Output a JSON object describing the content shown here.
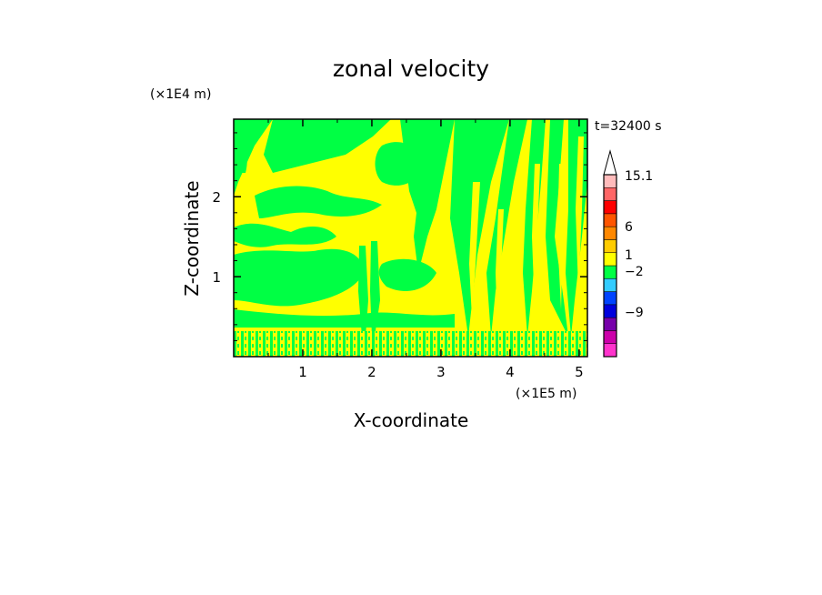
{
  "chart_data": {
    "type": "heatmap",
    "title": "zonal velocity",
    "xlabel": "X-coordinate",
    "ylabel": "Z-coordinate",
    "x_unit": "(×1E5 m)",
    "y_unit": "(×1E4 m)",
    "time_label": "t=32400 s",
    "x_ticks": [
      "1",
      "2",
      "3",
      "4",
      "5"
    ],
    "x_tick_values": [
      1,
      2,
      3,
      4,
      5
    ],
    "y_ticks": [
      "1",
      "2"
    ],
    "y_tick_values": [
      1,
      2
    ],
    "xlim": [
      0,
      5.12
    ],
    "ylim": [
      0,
      2.97
    ],
    "colorbar": {
      "levels": [
        {
          "color": "#ff33cc"
        },
        {
          "color": "#cc00aa"
        },
        {
          "color": "#7700aa"
        },
        {
          "color": "#0000dd"
        },
        {
          "color": "#0044ff"
        },
        {
          "color": "#33ccff"
        },
        {
          "color": "#00ff44"
        },
        {
          "color": "#ffff00"
        },
        {
          "color": "#ffcc00"
        },
        {
          "color": "#ff8800"
        },
        {
          "color": "#ff5500"
        },
        {
          "color": "#ff0000"
        },
        {
          "color": "#ff6666"
        },
        {
          "color": "#ffbbbb"
        },
        {
          "color": "#ffffff"
        }
      ],
      "labels": [
        "15.1",
        "6",
        "1",
        "−2",
        "−9"
      ]
    },
    "field": {
      "dominant_colors": [
        "#ffff00",
        "#00ff44"
      ],
      "plumes_x": [
        1.9,
        2.55,
        3.4,
        3.8,
        4.8
      ]
    }
  }
}
